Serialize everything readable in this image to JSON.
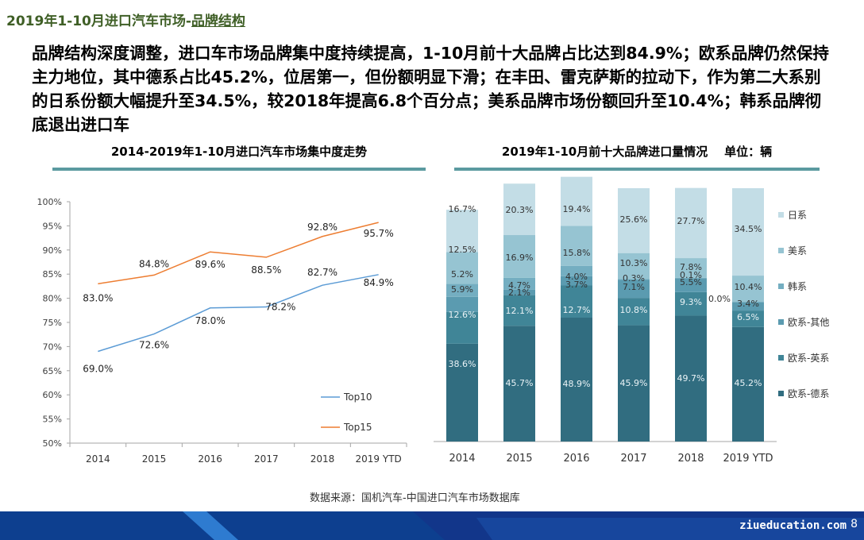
{
  "header": {
    "title_prefix": "2019年1-10月进口汽车市场-",
    "title_highlight": "品牌结构"
  },
  "summary": "品牌结构深度调整，进口车市场品牌集中度持续提高，1-10月前十大品牌占比达到84.9%；欧系品牌仍然保持主力地位，其中德系占比45.2%，位居第一，但份额明显下滑；在丰田、雷克萨斯的拉动下，作为第二大系别的日系份额大幅提升至34.5%，较2018年提高6.8个百分点；美系品牌市场份额回升至10.4%；韩系品牌彻底退出进口车",
  "left_title": "2014-2019年1-10月进口汽车市场集中度走势",
  "right_title": "2019年1-10月前十大品牌进口量情况    单位：辆",
  "source": "数据来源：国机汽车-中国进口汽车市场数据库",
  "site": "ziueducation.com",
  "page_number": "8",
  "colors": {
    "top10": "#5b9bd5",
    "top15": "#ed7d31",
    "divider": "#5b9aa0",
    "footer_dark": "#0d3f8f",
    "footer_light": "#2e7bd0"
  },
  "chart_data": [
    {
      "type": "line",
      "categories": [
        "2014",
        "2015",
        "2016",
        "2017",
        "2018",
        "2019 YTD"
      ],
      "ylim": [
        50,
        100
      ],
      "yticks": [
        "50%",
        "55%",
        "60%",
        "65%",
        "70%",
        "75%",
        "80%",
        "85%",
        "90%",
        "95%",
        "100%"
      ],
      "grid": false,
      "legend_position": "right",
      "series": [
        {
          "name": "Top10",
          "color": "#5b9bd5",
          "values": [
            69.0,
            72.6,
            78.0,
            78.2,
            82.7,
            84.9
          ],
          "labels": [
            "69.0%",
            "72.6%",
            "78.0%",
            "78.2%",
            "82.7%",
            "84.9%"
          ]
        },
        {
          "name": "Top15",
          "color": "#ed7d31",
          "values": [
            83.0,
            84.8,
            89.6,
            88.5,
            92.8,
            95.7
          ],
          "labels": [
            "83.0%",
            "84.8%",
            "89.6%",
            "88.5%",
            "92.8%",
            "95.7%"
          ]
        }
      ]
    },
    {
      "type": "bar",
      "stacked": true,
      "categories": [
        "2014",
        "2015",
        "2016",
        "2017",
        "2018",
        "2019 YTD"
      ],
      "ylim": [
        0,
        100
      ],
      "legend_position": "right",
      "series": [
        {
          "name": "欧系-德系",
          "color": "#316d80",
          "values": [
            38.6,
            45.7,
            48.9,
            45.9,
            49.7,
            45.2
          ],
          "labels": [
            "38.6%",
            "45.7%",
            "48.9%",
            "45.9%",
            "49.7%",
            "45.2%"
          ]
        },
        {
          "name": "欧系-英系",
          "color": "#408597",
          "values": [
            12.6,
            12.1,
            12.7,
            10.8,
            9.3,
            6.5
          ],
          "labels": [
            "12.6%",
            "12.1%",
            "12.7%",
            "10.8%",
            "9.3%",
            "6.5%"
          ]
        },
        {
          "name": "欧系-其他",
          "color": "#5b9bb0",
          "values": [
            5.9,
            2.1,
            3.7,
            7.1,
            5.5,
            3.4
          ],
          "labels": [
            "5.9%",
            "2.1%",
            "3.7%",
            "7.1%",
            "5.5%",
            "3.4%"
          ]
        },
        {
          "name": "韩系",
          "color": "#74aec1",
          "values": [
            5.2,
            4.7,
            4.0,
            0.3,
            0.1,
            0.0
          ],
          "labels": [
            "5.2%",
            "4.7%",
            "4.0%",
            "0.3%",
            "0.1%",
            "0.0%"
          ]
        },
        {
          "name": "美系",
          "color": "#96c4d2",
          "values": [
            12.5,
            16.9,
            15.8,
            10.3,
            7.8,
            10.4
          ],
          "labels": [
            "12.5%",
            "16.9%",
            "15.8%",
            "10.3%",
            "7.8%",
            "10.4%"
          ]
        },
        {
          "name": "日系",
          "color": "#c3dde6",
          "values": [
            16.7,
            20.3,
            19.4,
            25.6,
            27.7,
            34.5
          ],
          "labels": [
            "16.7%",
            "20.3%",
            "19.4%",
            "25.6%",
            "27.7%",
            "34.5%"
          ]
        }
      ]
    }
  ]
}
